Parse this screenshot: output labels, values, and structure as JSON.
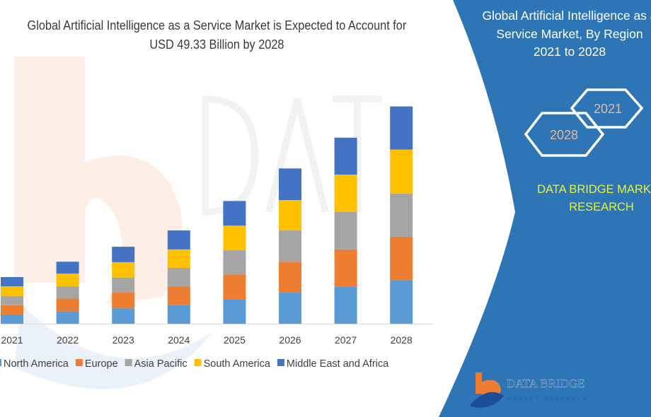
{
  "chart_data": {
    "type": "bar",
    "stacked": true,
    "title": "Global Artificial Intelligence as a Service Market is Expected to Account for USD 49.33 Billion by 2028",
    "title_lines": [
      "Global Artificial Intelligence as a Service Market is Expected to Account for",
      "USD 49.33 Billion by 2028"
    ],
    "xlabel": "",
    "ylabel": "",
    "categories": [
      "2021",
      "2022",
      "2023",
      "2024",
      "2025",
      "2026",
      "2027",
      "2028"
    ],
    "series": [
      {
        "name": "North America",
        "color": "#5b9bd5",
        "values": [
          2.1,
          2.8,
          3.5,
          4.2,
          5.6,
          7.1,
          8.5,
          9.9
        ]
      },
      {
        "name": "Europe",
        "color": "#ed7d31",
        "values": [
          2.1,
          2.9,
          3.6,
          4.3,
          5.6,
          7.0,
          8.4,
          9.9
        ]
      },
      {
        "name": "Asia Pacific",
        "color": "#a5a5a5",
        "values": [
          2.1,
          2.8,
          3.4,
          4.2,
          5.5,
          7.1,
          8.5,
          9.8
        ]
      },
      {
        "name": "South America",
        "color": "#ffc000",
        "values": [
          2.2,
          2.9,
          3.5,
          4.2,
          5.6,
          6.9,
          8.5,
          10.0
        ]
      },
      {
        "name": "Middle East and Africa",
        "color": "#4472c4",
        "values": [
          2.1,
          2.7,
          3.5,
          4.3,
          5.6,
          7.2,
          8.4,
          9.8
        ]
      }
    ],
    "ylim": [
      0,
      50
    ],
    "grid": false,
    "legend": "bottom"
  },
  "panel": {
    "title_lines": [
      "Global Artificial Intelligence as a",
      "Service Market, By Region",
      "2021 to 2028"
    ],
    "hex_start": "2021",
    "hex_end": "2028",
    "brand_lines": [
      "DATA BRIDGE MARKET",
      "RESEARCH"
    ],
    "logo_text": "DATA BRIDGE",
    "logo_subtext": "MARKET RESEARCH",
    "color": "#2e75b6"
  }
}
